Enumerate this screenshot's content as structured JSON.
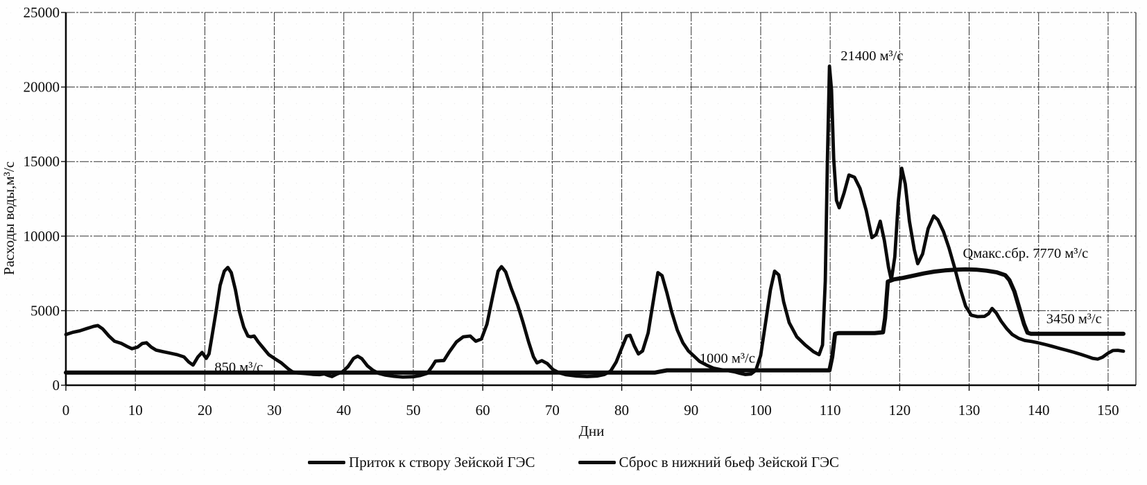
{
  "chart_data": {
    "type": "line",
    "title": "",
    "xlabel": "Дни",
    "ylabel": "Расходы воды,м³/с",
    "xlim": [
      0,
      154
    ],
    "ylim": [
      0,
      25000
    ],
    "x_ticks": [
      0,
      10,
      20,
      30,
      40,
      50,
      60,
      70,
      80,
      90,
      100,
      110,
      120,
      130,
      140,
      150
    ],
    "y_ticks": [
      0,
      5000,
      10000,
      15000,
      20000,
      25000
    ],
    "grid": true,
    "legend_position": "bottom",
    "line_color": "#0a0a0a",
    "series": [
      {
        "id": "inflow",
        "name": "Приток к створу Зейской ГЭС",
        "color": "#0a0a0a",
        "width": 4.8,
        "points": [
          [
            0,
            3400
          ],
          [
            1,
            3550
          ],
          [
            2,
            3650
          ],
          [
            3,
            3800
          ],
          [
            4,
            3950
          ],
          [
            4.6,
            4000
          ],
          [
            5.3,
            3780
          ],
          [
            6.2,
            3300
          ],
          [
            7,
            2950
          ],
          [
            8,
            2800
          ],
          [
            8.8,
            2600
          ],
          [
            9.5,
            2450
          ],
          [
            10.3,
            2550
          ],
          [
            11,
            2800
          ],
          [
            11.6,
            2850
          ],
          [
            12.3,
            2550
          ],
          [
            13,
            2350
          ],
          [
            14,
            2250
          ],
          [
            15,
            2150
          ],
          [
            16,
            2050
          ],
          [
            17,
            1900
          ],
          [
            17.7,
            1550
          ],
          [
            18.3,
            1350
          ],
          [
            19,
            1900
          ],
          [
            19.6,
            2200
          ],
          [
            20.2,
            1800
          ],
          [
            20.6,
            2100
          ],
          [
            21,
            3200
          ],
          [
            21.6,
            4900
          ],
          [
            22.2,
            6700
          ],
          [
            22.8,
            7650
          ],
          [
            23.3,
            7900
          ],
          [
            23.8,
            7550
          ],
          [
            24.4,
            6400
          ],
          [
            25,
            4900
          ],
          [
            25.6,
            3900
          ],
          [
            26.2,
            3300
          ],
          [
            26.6,
            3250
          ],
          [
            27.1,
            3300
          ],
          [
            27.7,
            2900
          ],
          [
            28.4,
            2500
          ],
          [
            29.2,
            2050
          ],
          [
            30,
            1800
          ],
          [
            31,
            1500
          ],
          [
            32,
            1100
          ],
          [
            32.6,
            900
          ],
          [
            33.4,
            820
          ],
          [
            34.5,
            780
          ],
          [
            35.5,
            730
          ],
          [
            36.5,
            710
          ],
          [
            37.2,
            760
          ],
          [
            37.8,
            650
          ],
          [
            38.3,
            580
          ],
          [
            39,
            750
          ],
          [
            39.8,
            900
          ],
          [
            40.6,
            1250
          ],
          [
            41.4,
            1800
          ],
          [
            42,
            1950
          ],
          [
            42.6,
            1780
          ],
          [
            43.4,
            1300
          ],
          [
            44.2,
            1000
          ],
          [
            45,
            800
          ],
          [
            46,
            680
          ],
          [
            47.2,
            600
          ],
          [
            48.5,
            550
          ],
          [
            50,
            570
          ],
          [
            51,
            650
          ],
          [
            52,
            800
          ],
          [
            52.7,
            1250
          ],
          [
            53.2,
            1620
          ],
          [
            54.4,
            1660
          ],
          [
            55.2,
            2250
          ],
          [
            56.2,
            2900
          ],
          [
            57.2,
            3250
          ],
          [
            58.2,
            3300
          ],
          [
            59,
            2950
          ],
          [
            59.8,
            3100
          ],
          [
            60.6,
            4100
          ],
          [
            61.4,
            5900
          ],
          [
            62.2,
            7650
          ],
          [
            62.7,
            7950
          ],
          [
            63.3,
            7600
          ],
          [
            64.1,
            6500
          ],
          [
            65,
            5400
          ],
          [
            65.8,
            4200
          ],
          [
            66.6,
            2900
          ],
          [
            67.3,
            1900
          ],
          [
            67.8,
            1500
          ],
          [
            68.5,
            1650
          ],
          [
            69.3,
            1450
          ],
          [
            70.1,
            1050
          ],
          [
            71,
            830
          ],
          [
            72,
            700
          ],
          [
            73.5,
            620
          ],
          [
            75,
            580
          ],
          [
            76.5,
            620
          ],
          [
            77.5,
            720
          ],
          [
            78.4,
            950
          ],
          [
            79.2,
            1550
          ],
          [
            80,
            2500
          ],
          [
            80.7,
            3300
          ],
          [
            81.2,
            3350
          ],
          [
            81.8,
            2650
          ],
          [
            82.4,
            2100
          ],
          [
            83,
            2300
          ],
          [
            83.8,
            3500
          ],
          [
            84.6,
            5800
          ],
          [
            85.2,
            7550
          ],
          [
            85.8,
            7350
          ],
          [
            86.5,
            6200
          ],
          [
            87.2,
            4900
          ],
          [
            88,
            3700
          ],
          [
            88.8,
            2850
          ],
          [
            89.6,
            2300
          ],
          [
            90.4,
            1950
          ],
          [
            91.2,
            1600
          ],
          [
            92.2,
            1350
          ],
          [
            93.2,
            1150
          ],
          [
            94.2,
            1050
          ],
          [
            95.2,
            980
          ],
          [
            96.2,
            900
          ],
          [
            97,
            800
          ],
          [
            97.8,
            720
          ],
          [
            98.6,
            750
          ],
          [
            99.3,
            1000
          ],
          [
            100,
            2000
          ],
          [
            100.7,
            4200
          ],
          [
            101.4,
            6400
          ],
          [
            102,
            7650
          ],
          [
            102.6,
            7400
          ],
          [
            103.3,
            5600
          ],
          [
            104.1,
            4200
          ],
          [
            105.2,
            3250
          ],
          [
            106.4,
            2700
          ],
          [
            107.6,
            2250
          ],
          [
            108.4,
            2050
          ],
          [
            108.9,
            2700
          ],
          [
            109.3,
            7000
          ],
          [
            109.6,
            15000
          ],
          [
            109.9,
            21400
          ],
          [
            110.2,
            19800
          ],
          [
            110.5,
            15200
          ],
          [
            110.9,
            12400
          ],
          [
            111.3,
            11900
          ],
          [
            112,
            12900
          ],
          [
            112.7,
            14100
          ],
          [
            113.5,
            13950
          ],
          [
            114.3,
            13200
          ],
          [
            115.2,
            11700
          ],
          [
            116,
            9900
          ],
          [
            116.6,
            10100
          ],
          [
            117.2,
            11000
          ],
          [
            117.8,
            9700
          ],
          [
            118.4,
            7900
          ],
          [
            118.8,
            7050
          ],
          [
            119.3,
            8600
          ],
          [
            119.8,
            12300
          ],
          [
            120.3,
            14550
          ],
          [
            120.8,
            13500
          ],
          [
            121.4,
            11000
          ],
          [
            122.1,
            9100
          ],
          [
            122.6,
            8150
          ],
          [
            123.3,
            8800
          ],
          [
            124.1,
            10500
          ],
          [
            124.9,
            11350
          ],
          [
            125.5,
            11100
          ],
          [
            126.3,
            10300
          ],
          [
            127.1,
            9200
          ],
          [
            127.9,
            7900
          ],
          [
            128.7,
            6500
          ],
          [
            129.5,
            5300
          ],
          [
            130.3,
            4700
          ],
          [
            131.2,
            4600
          ],
          [
            132.2,
            4620
          ],
          [
            132.8,
            4800
          ],
          [
            133.3,
            5150
          ],
          [
            133.9,
            4850
          ],
          [
            134.6,
            4300
          ],
          [
            135.4,
            3800
          ],
          [
            136.2,
            3400
          ],
          [
            137.1,
            3150
          ],
          [
            138,
            3000
          ],
          [
            139,
            2930
          ],
          [
            140,
            2840
          ],
          [
            141,
            2730
          ],
          [
            142,
            2600
          ],
          [
            143,
            2470
          ],
          [
            144,
            2350
          ],
          [
            145,
            2220
          ],
          [
            146,
            2080
          ],
          [
            147,
            1930
          ],
          [
            147.8,
            1800
          ],
          [
            148.5,
            1750
          ],
          [
            149.2,
            1880
          ],
          [
            150,
            2150
          ],
          [
            150.7,
            2330
          ],
          [
            151.4,
            2340
          ],
          [
            152.2,
            2280
          ]
        ]
      },
      {
        "id": "discharge",
        "name": "Сброс в нижний бьеф Зейской ГЭС",
        "color": "#0a0a0a",
        "width": 6,
        "points": [
          [
            0,
            850
          ],
          [
            84.8,
            850
          ],
          [
            86.5,
            1000
          ],
          [
            109.9,
            1000
          ],
          [
            110.3,
            1900
          ],
          [
            110.7,
            3450
          ],
          [
            111.2,
            3500
          ],
          [
            116.4,
            3500
          ],
          [
            117.6,
            3550
          ],
          [
            117.9,
            4500
          ],
          [
            118.3,
            6950
          ],
          [
            119.2,
            7100
          ],
          [
            120.5,
            7200
          ],
          [
            122,
            7350
          ],
          [
            123.5,
            7500
          ],
          [
            125,
            7620
          ],
          [
            126.5,
            7700
          ],
          [
            128,
            7750
          ],
          [
            129.5,
            7770
          ],
          [
            131,
            7750
          ],
          [
            132.5,
            7680
          ],
          [
            134,
            7570
          ],
          [
            135.2,
            7380
          ],
          [
            135.8,
            7050
          ],
          [
            136.5,
            6300
          ],
          [
            137.2,
            5200
          ],
          [
            137.9,
            4100
          ],
          [
            138.4,
            3520
          ],
          [
            138.9,
            3450
          ],
          [
            152.2,
            3450
          ]
        ]
      }
    ],
    "annotations": [
      {
        "id": "inflow-base-label",
        "text": "850 м³/с",
        "x": 21.4,
        "y": 900
      },
      {
        "id": "discharge-1000-label",
        "text": "1000 м³/с",
        "x": 91.2,
        "y": 1500
      },
      {
        "id": "peak-21400-label",
        "text": "21400 м³/с",
        "x": 111.5,
        "y": 21800
      },
      {
        "id": "qmax-label",
        "text": "Qмакс.сбр.  7770 м³/с",
        "x": 129.1,
        "y": 8550
      },
      {
        "id": "end-3450-label",
        "text": "3450 м³/с",
        "x": 141.1,
        "y": 4150
      }
    ]
  }
}
